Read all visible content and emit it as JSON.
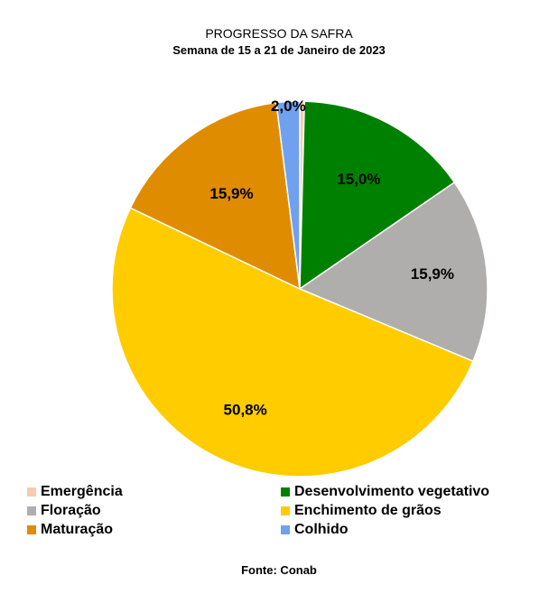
{
  "chart_data": {
    "type": "pie",
    "title": "PROGRESSO DA SAFRA",
    "subtitle": "Semana de 15 a 21 de Janeiro de 2023",
    "slices": [
      {
        "name": "Emergência",
        "value": 0.4,
        "color": "#f8cbad",
        "label": ""
      },
      {
        "name": "Desenvolvimento vegetativo",
        "value": 15.0,
        "color": "#008000",
        "label": "15,0%"
      },
      {
        "name": "Floração",
        "value": 15.9,
        "color": "#b0adad",
        "label": "15,9%"
      },
      {
        "name": "Enchimento de grãos",
        "value": 50.8,
        "color": "#ffcc00",
        "label": "50,8%"
      },
      {
        "name": "Maturação",
        "value": 15.9,
        "color": "#e08c00",
        "label": "15,9%"
      },
      {
        "name": "Colhido",
        "value": 2.0,
        "color": "#6fa1ef",
        "label": "2,0%"
      }
    ],
    "legend_placement": "bottom"
  },
  "source": "Fonte: Conab"
}
